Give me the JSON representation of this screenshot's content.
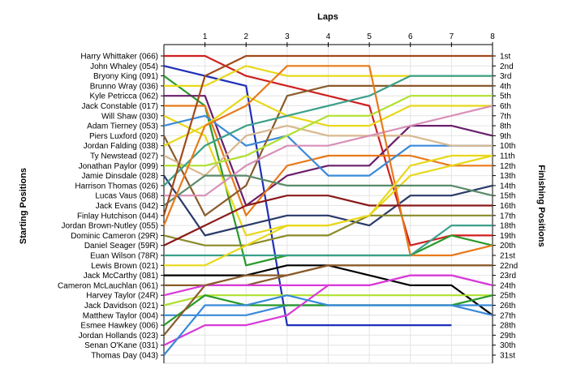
{
  "chart_data": {
    "type": "line",
    "title": "",
    "top_axis_label": "Laps",
    "left_axis_label": "Starting Positions",
    "right_axis_label": "Finishing Positions",
    "laps": [
      0,
      1,
      2,
      3,
      4,
      5,
      6,
      7,
      8
    ],
    "lap_tick_labels": [
      "1",
      "2",
      "3",
      "4",
      "5",
      "6",
      "7",
      "8"
    ],
    "ylim": [
      1,
      31
    ],
    "grid": true,
    "finishing_labels": [
      "1st",
      "2nd",
      "3rd",
      "4th",
      "5th",
      "6th",
      "7th",
      "8th",
      "9th",
      "10th",
      "11th",
      "12th",
      "13th",
      "14th",
      "15th",
      "16th",
      "17th",
      "18th",
      "19th",
      "20th",
      "21st",
      "22nd",
      "23rd",
      "24th",
      "25th",
      "26th",
      "27th",
      "28th",
      "29th",
      "30th",
      "31st"
    ],
    "drivers": [
      "Harry Whittaker (066)",
      "John Whaley (054)",
      "Bryony King (091)",
      "Brunno Wray (036)",
      "Kyle Petricca (062)",
      "Jack Constable (017)",
      "Will Shaw (030)",
      "Adam Tierney (053)",
      "Piers Luxford (020)",
      "Jordan Falding (038)",
      "Ty Newstead (027)",
      "Jonathan Paylor (099)",
      "Jamie Dinsdale (028)",
      "Harrison Thomas (026)",
      "Lucas Vaus (068)",
      "Jack Evans (042)",
      "Finlay Hutchison (044)",
      "Jordan Brown-Nutley (055)",
      "Dominic Cameron (29R)",
      "Daniel Seager (59R)",
      "Euan Wilson (78R)",
      "Lewis Brown (021)",
      "Jack McCarthy (081)",
      "Cameron McLauchlan (061)",
      "Harvey Taylor (24R)",
      "Jack Davidson (021)",
      "Matthew Taylor (004)",
      "Esmee Hawkey (006)",
      "Jordan Hollands (023)",
      "Senan O'Kane (031)",
      "Thomas Day (043)"
    ],
    "series": [
      {
        "color": "#d01f1f",
        "values": [
          1,
          1,
          3,
          4,
          5,
          6,
          20,
          19,
          19
        ]
      },
      {
        "color": "#1f2fb8",
        "values": [
          2,
          3,
          4,
          28,
          28,
          28,
          28,
          28,
          null
        ]
      },
      {
        "color": "#2a9a2a",
        "values": [
          3,
          6,
          22,
          21,
          21,
          21,
          21,
          19,
          20
        ]
      },
      {
        "color": "#e8d81a",
        "values": [
          4,
          4,
          2,
          3,
          3,
          3,
          3,
          3,
          3
        ]
      },
      {
        "color": "#6a1f6a",
        "values": [
          5,
          5,
          16,
          13,
          12,
          12,
          8,
          8,
          9
        ]
      },
      {
        "color": "#e87a1a",
        "values": [
          6,
          6,
          17,
          12,
          11,
          11,
          11,
          12,
          12
        ]
      },
      {
        "color": "#e8d81a",
        "values": [
          7,
          9,
          19,
          18,
          18,
          17,
          13,
          12,
          11
        ]
      },
      {
        "color": "#3a8ad8",
        "values": [
          8,
          7,
          10,
          9,
          13,
          13,
          10,
          10,
          10
        ]
      },
      {
        "color": "#8a5a2a",
        "values": [
          9,
          17,
          14,
          5,
          4,
          4,
          4,
          4,
          4
        ]
      },
      {
        "color": "#e8d81a",
        "values": [
          10,
          8,
          5,
          7,
          8,
          8,
          6,
          6,
          6
        ]
      },
      {
        "color": "#d8b890",
        "values": [
          11,
          13,
          9,
          8,
          9,
          9,
          9,
          10,
          10
        ]
      },
      {
        "color": "#b0e030",
        "values": [
          12,
          12,
          11,
          9,
          7,
          7,
          5,
          5,
          5
        ]
      },
      {
        "color": "#2a3a6a",
        "values": [
          13,
          19,
          18,
          17,
          17,
          18,
          15,
          15,
          14
        ]
      },
      {
        "color": "#3aa08a",
        "values": [
          14,
          10,
          8,
          7,
          6,
          5,
          3,
          3,
          3
        ]
      },
      {
        "color": "#d890b8",
        "values": [
          15,
          15,
          12,
          10,
          10,
          9,
          8,
          7,
          6
        ]
      },
      {
        "color": "#5a8a6a",
        "values": [
          16,
          13,
          13,
          14,
          14,
          14,
          14,
          14,
          15
        ]
      },
      {
        "color": "#a04a1a",
        "values": [
          17,
          3,
          1,
          1,
          1,
          1,
          1,
          1,
          1
        ]
      },
      {
        "color": "#e87a1a",
        "values": [
          18,
          8,
          6,
          2,
          2,
          2,
          21,
          21,
          20
        ]
      },
      {
        "color": "#8a8a2a",
        "values": [
          19,
          20,
          20,
          19,
          19,
          17,
          17,
          17,
          17
        ]
      },
      {
        "color": "#8a1a1a",
        "values": [
          20,
          18,
          16,
          15,
          15,
          16,
          16,
          16,
          16
        ]
      },
      {
        "color": "#3aa08a",
        "values": [
          21,
          21,
          21,
          21,
          21,
          21,
          21,
          18,
          18
        ]
      },
      {
        "color": "#e8d81a",
        "values": [
          22,
          22,
          20,
          18,
          18,
          17,
          12,
          11,
          11
        ]
      },
      {
        "color": "#000000",
        "values": [
          23,
          23,
          23,
          22,
          22,
          23,
          24,
          24,
          27
        ]
      },
      {
        "color": "#8a5a2a",
        "values": [
          24,
          24,
          24,
          23,
          22,
          22,
          22,
          22,
          22
        ]
      },
      {
        "color": "#d83ad8",
        "values": [
          25,
          24,
          24,
          24,
          24,
          24,
          23,
          23,
          24
        ]
      },
      {
        "color": "#b0e030",
        "values": [
          26,
          25,
          25,
          25,
          25,
          25,
          25,
          25,
          25
        ]
      },
      {
        "color": "#3a8ad8",
        "values": [
          27,
          27,
          27,
          26,
          26,
          26,
          26,
          26,
          26
        ]
      },
      {
        "color": "#2a9a2a",
        "values": [
          28,
          25,
          26,
          26,
          26,
          26,
          26,
          26,
          25
        ]
      },
      {
        "color": "#8a5a2a",
        "values": [
          29,
          24,
          23,
          23,
          22,
          22,
          22,
          22,
          22
        ]
      },
      {
        "color": "#d83ad8",
        "values": [
          30,
          28,
          28,
          27,
          24,
          24,
          23,
          23,
          24
        ]
      },
      {
        "color": "#3a8ad8",
        "values": [
          31,
          26,
          26,
          25,
          26,
          26,
          26,
          26,
          27
        ]
      }
    ]
  }
}
